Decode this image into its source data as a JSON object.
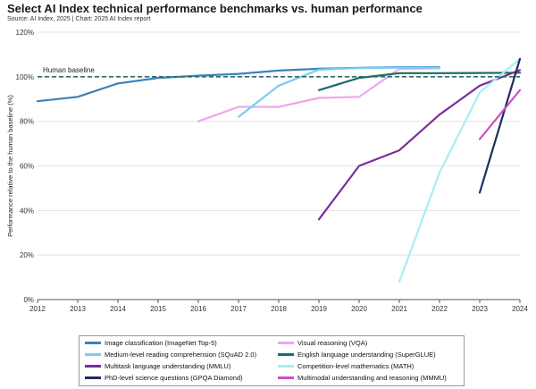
{
  "header": {
    "title": "Select AI Index technical performance benchmarks vs. human performance",
    "subtitle": "Source: AI Index, 2025 | Chart: 2025 AI Index report"
  },
  "chart_data": {
    "type": "line",
    "title": "Select AI Index technical performance benchmarks vs. human performance",
    "ylabel": "Performance relative to the human baseline (%)",
    "xlabel": "",
    "xlim": [
      2012,
      2024
    ],
    "ylim": [
      0,
      120
    ],
    "x_ticks": [
      "2012",
      "2013",
      "2014",
      "2015",
      "2016",
      "2017",
      "2018",
      "2019",
      "2020",
      "2021",
      "2022",
      "2023",
      "2024"
    ],
    "y_ticks": [
      "0%",
      "20%",
      "40%",
      "60%",
      "80%",
      "100%",
      "120%"
    ],
    "baseline": {
      "label": "Human baseline",
      "value": 100,
      "color": "#2e6b6b"
    },
    "grid": "horizontal",
    "legend_position": "bottom",
    "series": [
      {
        "name": "Image classification (ImageNet Top-5)",
        "color": "#3b82b8",
        "points": [
          [
            2012,
            89
          ],
          [
            2013,
            91
          ],
          [
            2014,
            97
          ],
          [
            2015,
            99.5
          ],
          [
            2016,
            100.5
          ],
          [
            2017,
            101.3
          ],
          [
            2018,
            102.8
          ],
          [
            2019,
            103.6
          ],
          [
            2020,
            104
          ],
          [
            2021,
            104.3
          ],
          [
            2022,
            104.3
          ]
        ]
      },
      {
        "name": "Visual reasoning (VQA)",
        "color": "#f0a6ee",
        "points": [
          [
            2016,
            80
          ],
          [
            2017,
            86.5
          ],
          [
            2018,
            86.5
          ],
          [
            2019,
            90.5
          ],
          [
            2020,
            91
          ],
          [
            2021,
            103.5
          ],
          [
            2022,
            103.8
          ]
        ]
      },
      {
        "name": "Medium-level reading comprehension (SQuAD 2.0)",
        "color": "#79cdf0",
        "points": [
          [
            2017,
            82
          ],
          [
            2018,
            96
          ],
          [
            2019,
            103.2
          ],
          [
            2020,
            103.9
          ],
          [
            2021,
            104.1
          ],
          [
            2022,
            104.1
          ]
        ]
      },
      {
        "name": "English language understanding (SuperGLUE)",
        "color": "#1c6b6b",
        "points": [
          [
            2019,
            94
          ],
          [
            2020,
            99.5
          ],
          [
            2021,
            101.6
          ],
          [
            2022,
            101.6
          ],
          [
            2023,
            101.7
          ],
          [
            2024,
            101.8
          ]
        ]
      },
      {
        "name": "Multitask language understanding (MMLU)",
        "color": "#7b2d9c",
        "points": [
          [
            2019,
            36
          ],
          [
            2020,
            60
          ],
          [
            2021,
            67
          ],
          [
            2022,
            83
          ],
          [
            2023,
            96
          ],
          [
            2024,
            103
          ]
        ]
      },
      {
        "name": "Competition-level mathematics (MATH)",
        "color": "#a8eef0",
        "points": [
          [
            2021,
            8
          ],
          [
            2022,
            57
          ],
          [
            2023,
            93
          ],
          [
            2024,
            108
          ]
        ]
      },
      {
        "name": "PhD-level science questions (GPQA Diamond)",
        "color": "#1f2d5c",
        "points": [
          [
            2023,
            48
          ],
          [
            2024,
            108
          ]
        ]
      },
      {
        "name": "Multimodal understanding and reasoning (MMMU)",
        "color": "#c94fc8",
        "points": [
          [
            2023,
            72
          ],
          [
            2024,
            94
          ]
        ]
      }
    ]
  },
  "legend_order": [
    0,
    1,
    2,
    3,
    4,
    5,
    6,
    7
  ]
}
